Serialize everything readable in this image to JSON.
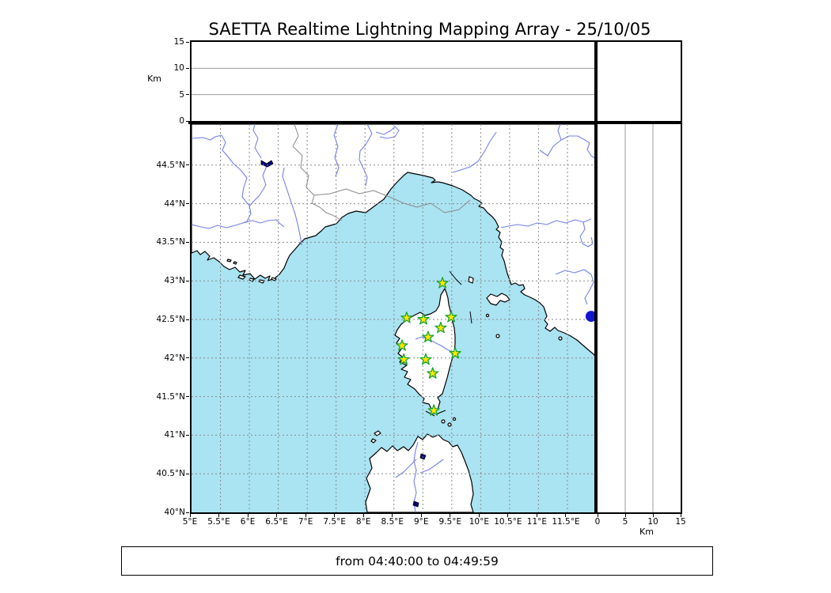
{
  "title": "SAETTA Realtime Lightning Mapping Array - 25/10/05",
  "footer": {
    "time_range": "from 04:40:00 to 04:49:59"
  },
  "colors": {
    "sea": "#aae3f2",
    "land": "#ffffff",
    "coastline": "#000000",
    "river": "#7381ea",
    "admin_border": "#8a8a8a",
    "map_grid": "#8a8a8a",
    "panel_grid": "#9b9b9b",
    "station_fill": "#ffe800",
    "station_edge": "#18a432",
    "event_dot": "#1316cd",
    "lake": "#000080"
  },
  "chart_data": {
    "type": "scatter",
    "title": "SAETTA Realtime Lightning Mapping Array - 25/10/05",
    "time_window": {
      "from": "04:40:00",
      "to": "04:49:59"
    },
    "map_panel": {
      "lon_range": [
        5.0,
        12.02
      ],
      "lat_range": [
        40.0,
        45.03
      ],
      "grid": "dotted",
      "lon_ticks": [
        {
          "value": 5,
          "label": "5°E"
        },
        {
          "value": 5.5,
          "label": "5.5°E"
        },
        {
          "value": 6,
          "label": "6°E"
        },
        {
          "value": 6.5,
          "label": "6.5°E"
        },
        {
          "value": 7,
          "label": "7°E"
        },
        {
          "value": 7.5,
          "label": "7.5°E"
        },
        {
          "value": 8,
          "label": "8°E"
        },
        {
          "value": 8.5,
          "label": "8.5°E"
        },
        {
          "value": 9,
          "label": "9°E"
        },
        {
          "value": 9.5,
          "label": "9.5°E"
        },
        {
          "value": 10,
          "label": "10°E"
        },
        {
          "value": 10.5,
          "label": "10.5°E"
        },
        {
          "value": 11,
          "label": "11°E"
        },
        {
          "value": 11.5,
          "label": "11.5°E"
        }
      ],
      "lat_ticks": [
        {
          "value": 40,
          "label": "40°N"
        },
        {
          "value": 40.5,
          "label": "40.5°N"
        },
        {
          "value": 41,
          "label": "41°N"
        },
        {
          "value": 41.5,
          "label": "41.5°N"
        },
        {
          "value": 42,
          "label": "42°N"
        },
        {
          "value": 42.5,
          "label": "42.5°N"
        },
        {
          "value": 43,
          "label": "43°N"
        },
        {
          "value": 43.5,
          "label": "43.5°N"
        },
        {
          "value": 44,
          "label": "44°N"
        },
        {
          "value": 44.5,
          "label": "44.5°N"
        }
      ]
    },
    "altitude_panels": {
      "axis_label": "Km",
      "range_km": [
        0,
        15
      ],
      "ticks": [
        0,
        5,
        10,
        15
      ],
      "grid_km": [
        5,
        10
      ]
    },
    "stations": [
      {
        "lon": 9.34,
        "lat": 42.97
      },
      {
        "lon": 8.72,
        "lat": 42.52
      },
      {
        "lon": 9.01,
        "lat": 42.5
      },
      {
        "lon": 9.49,
        "lat": 42.53
      },
      {
        "lon": 9.31,
        "lat": 42.39
      },
      {
        "lon": 9.09,
        "lat": 42.27
      },
      {
        "lon": 8.64,
        "lat": 42.16
      },
      {
        "lon": 9.56,
        "lat": 42.06
      },
      {
        "lon": 8.67,
        "lat": 41.98
      },
      {
        "lon": 9.05,
        "lat": 41.98
      },
      {
        "lon": 9.17,
        "lat": 41.8
      },
      {
        "lon": 9.19,
        "lat": 41.32
      }
    ],
    "events": [
      {
        "lon": 11.91,
        "lat": 42.54
      }
    ]
  }
}
